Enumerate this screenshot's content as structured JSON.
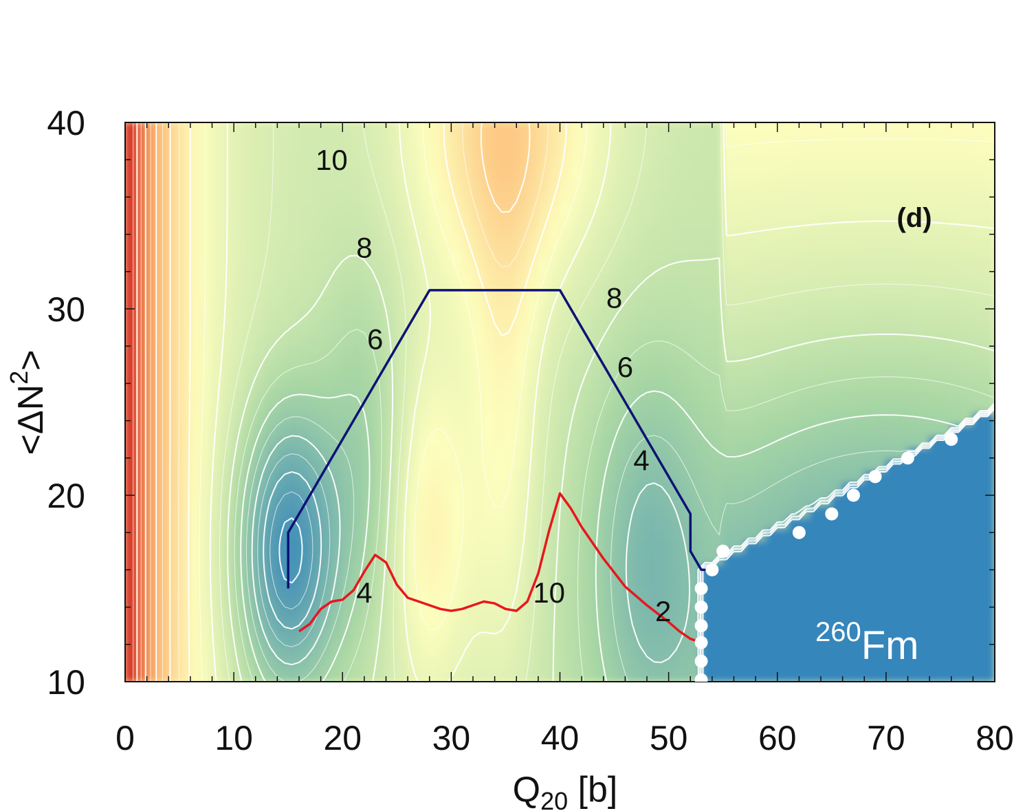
{
  "chart_data": {
    "type": "heatmap",
    "panel": "(d)",
    "nucleus": {
      "mass_number": "260",
      "symbol": "Fm"
    },
    "xlabel": {
      "main": "Q",
      "sub": "20",
      "unit": " [b]"
    },
    "ylabel": {
      "open": "<ΔN",
      "sup": "2",
      "close": ">"
    },
    "xlim": [
      0,
      80
    ],
    "ylim": [
      10,
      40
    ],
    "xticks": [
      0,
      10,
      20,
      30,
      40,
      50,
      60,
      70,
      80
    ],
    "yticks": [
      10,
      20,
      30,
      40
    ],
    "colormap": {
      "low": "#2f82bc",
      "mid_low": "#a9d7a4",
      "mid": "#fdfebd",
      "mid_high": "#fdb46e",
      "high": "#d42b22"
    },
    "contour_line_color": "#ffffff",
    "contour_labels": [
      {
        "text": "10",
        "x": 19,
        "y": 38
      },
      {
        "text": "8",
        "x": 22,
        "y": 33.3
      },
      {
        "text": "6",
        "x": 23,
        "y": 28.4
      },
      {
        "text": "8",
        "x": 45,
        "y": 30.6
      },
      {
        "text": "6",
        "x": 46,
        "y": 26.9
      },
      {
        "text": "4",
        "x": 47.5,
        "y": 21.9
      },
      {
        "text": "4",
        "x": 22,
        "y": 14.8
      },
      {
        "text": "10",
        "x": 39,
        "y": 14.8
      },
      {
        "text": "2",
        "x": 49.5,
        "y": 13.8
      }
    ],
    "series": [
      {
        "name": "dark-blue-path",
        "color": "#0d1275",
        "points": [
          [
            15,
            15
          ],
          [
            15,
            18
          ],
          [
            28,
            31
          ],
          [
            40,
            31
          ],
          [
            52,
            19
          ],
          [
            52,
            17
          ],
          [
            53,
            16
          ],
          [
            54,
            16
          ]
        ]
      },
      {
        "name": "red-path",
        "color": "#e8171d",
        "points": [
          [
            16,
            12.7
          ],
          [
            17,
            13.1
          ],
          [
            18,
            13.9
          ],
          [
            19,
            14.3
          ],
          [
            20,
            14.4
          ],
          [
            21,
            14.9
          ],
          [
            22,
            15.9
          ],
          [
            23,
            16.8
          ],
          [
            24,
            16.4
          ],
          [
            25,
            15.2
          ],
          [
            26,
            14.5
          ],
          [
            28,
            14.1
          ],
          [
            29,
            13.9
          ],
          [
            30,
            13.8
          ],
          [
            31,
            13.9
          ],
          [
            32,
            14.1
          ],
          [
            33,
            14.3
          ],
          [
            34,
            14.2
          ],
          [
            35,
            13.9
          ],
          [
            36,
            13.8
          ],
          [
            37,
            14.3
          ],
          [
            38,
            15.8
          ],
          [
            39,
            18.1
          ],
          [
            40,
            20.1
          ],
          [
            41,
            19.3
          ],
          [
            42,
            18.3
          ],
          [
            44,
            16.6
          ],
          [
            46,
            15.1
          ],
          [
            48,
            14.1
          ],
          [
            50,
            13.2
          ],
          [
            51,
            12.7
          ],
          [
            52,
            12.3
          ],
          [
            53,
            12.1
          ]
        ]
      },
      {
        "name": "white-dots",
        "color": "#ffffff",
        "points": [
          [
            53,
            10.1
          ],
          [
            53,
            11.1
          ],
          [
            53,
            12.1
          ],
          [
            53,
            13.0
          ],
          [
            53,
            14.0
          ],
          [
            53,
            15.0
          ],
          [
            54,
            16.0
          ],
          [
            55,
            17.0
          ],
          [
            62,
            18.0
          ],
          [
            65,
            19.0
          ],
          [
            67,
            20.0
          ],
          [
            69,
            21.0
          ],
          [
            72,
            22.0
          ],
          [
            76,
            23.0
          ]
        ]
      }
    ]
  }
}
